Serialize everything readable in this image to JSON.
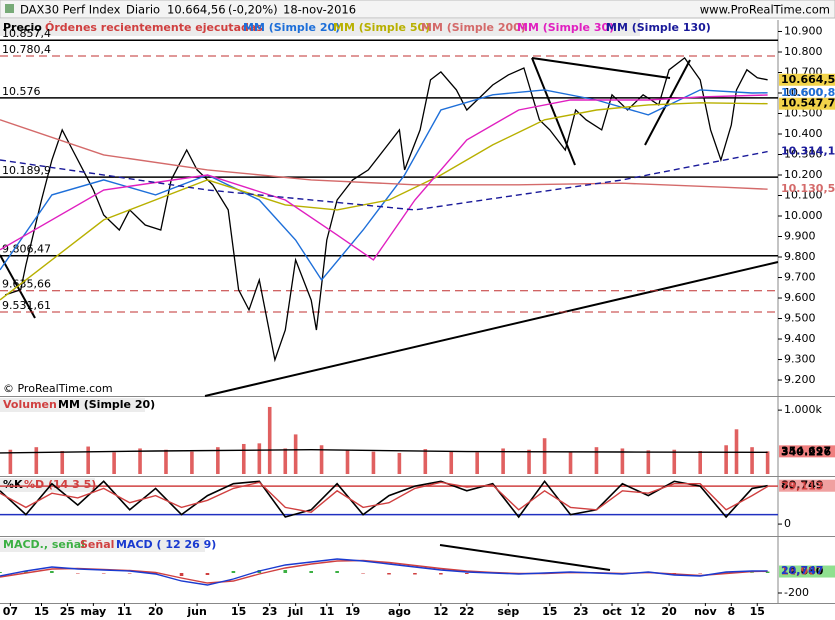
{
  "chart_data": [
    {
      "type": "line",
      "title": "DAX30 Perf Index",
      "period": "Diario",
      "change": "(-0,20%)",
      "date": "18-nov-2016",
      "site": "www.ProRealTime.com",
      "legend_note": "Órdenes recientemente ejecutadas",
      "panel_label": "Precio",
      "copyright": "© ProRealTime.com",
      "color": "#000000",
      "badge": "#f2d34a",
      "last": {
        "value": 10664.56,
        "label": "10.664,56"
      },
      "x": [
        1,
        4,
        5,
        8,
        10,
        12,
        14,
        16,
        18,
        20,
        23,
        25,
        28,
        31,
        33,
        36,
        38,
        41,
        44,
        46,
        48,
        50,
        53,
        55,
        57,
        60,
        61,
        63,
        65,
        68,
        71,
        74,
        77,
        78,
        81,
        83,
        85,
        88,
        90,
        92,
        95,
        98,
        101,
        104,
        106,
        109,
        111,
        113,
        116,
        118,
        121,
        124,
        127,
        129,
        132,
        135,
        137,
        139,
        141,
        142,
        144,
        146,
        148
      ],
      "values": [
        9615,
        9640,
        9761,
        10078,
        10273,
        10420,
        10322,
        10225,
        10127,
        10005,
        9932,
        10030,
        9956,
        9932,
        10176,
        10322,
        10225,
        10152,
        10030,
        9640,
        9542,
        9688,
        9298,
        9444,
        9786,
        9590,
        9444,
        9883,
        10078,
        10176,
        10225,
        10322,
        10420,
        10225,
        10420,
        10664,
        10703,
        10615,
        10517,
        10566,
        10639,
        10688,
        10722,
        10469,
        10420,
        10322,
        10517,
        10469,
        10420,
        10591,
        10517,
        10591,
        10542,
        10713,
        10771,
        10664,
        10420,
        10273,
        10444,
        10615,
        10713,
        10674,
        10664.56
      ],
      "xlim": [
        0,
        150
      ],
      "xticks": [
        {
          "value": 2,
          "label": "07"
        },
        {
          "value": 8,
          "label": "15"
        },
        {
          "value": 13,
          "label": "25"
        },
        {
          "value": 18,
          "label": "may"
        },
        {
          "value": 24,
          "label": "11"
        },
        {
          "value": 30,
          "label": "20"
        },
        {
          "value": 38,
          "label": "jun"
        },
        {
          "value": 46,
          "label": "15"
        },
        {
          "value": 52,
          "label": "23"
        },
        {
          "value": 57,
          "label": "jul"
        },
        {
          "value": 63,
          "label": "11"
        },
        {
          "value": 68,
          "label": "19"
        },
        {
          "value": 77,
          "label": "ago"
        },
        {
          "value": 85,
          "label": "12"
        },
        {
          "value": 90,
          "label": "22"
        },
        {
          "value": 98,
          "label": "sep"
        },
        {
          "value": 106,
          "label": "15"
        },
        {
          "value": 112,
          "label": "23"
        },
        {
          "value": 118,
          "label": "oct"
        },
        {
          "value": 123,
          "label": "12"
        },
        {
          "value": 129,
          "label": "20"
        },
        {
          "value": 136,
          "label": "nov"
        },
        {
          "value": 141,
          "label": "8"
        },
        {
          "value": 146,
          "label": "15"
        }
      ],
      "ylim": [
        9127,
        10956
      ],
      "yticks": [
        {
          "value": 9200,
          "label": "9.200"
        },
        {
          "value": 9300,
          "label": "9.300"
        },
        {
          "value": 9400,
          "label": "9.400"
        },
        {
          "value": 9500,
          "label": "9.500"
        },
        {
          "value": 9600,
          "label": "9.600"
        },
        {
          "value": 9700,
          "label": "9.700"
        },
        {
          "value": 9800,
          "label": "9.800"
        },
        {
          "value": 9900,
          "label": "9.900"
        },
        {
          "value": 10000,
          "label": "10.000"
        },
        {
          "value": 10100,
          "label": "10.100"
        },
        {
          "value": 10200,
          "label": "10.200"
        },
        {
          "value": 10300,
          "label": "10.300"
        },
        {
          "value": 10400,
          "label": "10.400"
        },
        {
          "value": 10500,
          "label": "10.500"
        },
        {
          "value": 10600,
          "label": "10.600"
        },
        {
          "value": 10700,
          "label": "10.700"
        },
        {
          "value": 10800,
          "label": "10.800"
        },
        {
          "value": 10900,
          "label": "10.900"
        }
      ],
      "levels": [
        {
          "value": 10857.4,
          "label": "10.857,4",
          "color": "#000000",
          "dashed": false
        },
        {
          "value": 10780.4,
          "label": "10.780,4",
          "color": "#c03030",
          "dashed": true
        },
        {
          "value": 10576,
          "label": "10.576",
          "color": "#000000",
          "dashed": false
        },
        {
          "value": 10189.9,
          "label": "10.189,9",
          "color": "#000000",
          "dashed": false
        },
        {
          "value": 9806.47,
          "label": "9.806,47",
          "color": "#000000",
          "dashed": false
        },
        {
          "value": 9635.66,
          "label": "9.635,66",
          "color": "#c03030",
          "dashed": true
        },
        {
          "value": 9531.61,
          "label": "9.531,61",
          "color": "#c03030",
          "dashed": true
        }
      ],
      "series": [
        {
          "name": "MM (Simple 20)",
          "color": "#1e6fd9",
          "dashed": false,
          "x": [
            0,
            10,
            20,
            30,
            40,
            50,
            57,
            62,
            70,
            78,
            85,
            95,
            105,
            115,
            125,
            135,
            145,
            148
          ],
          "values": [
            9737,
            10103,
            10176,
            10103,
            10200,
            10078,
            9883,
            9688,
            9932,
            10200,
            10517,
            10591,
            10615,
            10566,
            10493,
            10615,
            10600,
            10600.89
          ],
          "last": {
            "value": 10600.89,
            "label": "10.600,89"
          }
        },
        {
          "name": "MM (Simple 50)",
          "color": "#b8b000",
          "dashed": false,
          "badge": "#f2d34a",
          "x": [
            0,
            20,
            40,
            55,
            65,
            75,
            85,
            95,
            105,
            115,
            125,
            135,
            148
          ],
          "values": [
            9591,
            9981,
            10176,
            10054,
            10030,
            10078,
            10200,
            10347,
            10469,
            10517,
            10542,
            10552,
            10547.7
          ],
          "last": {
            "value": 10547.7,
            "label": "10.547,70"
          }
        },
        {
          "name": "MM (Simple 200)",
          "color": "#d46a6a",
          "dashed": false,
          "x": [
            0,
            20,
            40,
            60,
            80,
            100,
            120,
            140,
            148
          ],
          "values": [
            10469,
            10298,
            10225,
            10176,
            10152,
            10152,
            10160,
            10140,
            10130.56
          ],
          "last": {
            "value": 10130.56,
            "label": "10.130,56"
          }
        },
        {
          "name": "MM (Simple 30)",
          "color": "#e020c0",
          "dashed": false,
          "x": [
            0,
            20,
            40,
            55,
            65,
            72,
            80,
            90,
            100,
            110,
            125,
            135,
            148
          ],
          "values": [
            9835,
            10127,
            10200,
            10078,
            9908,
            9786,
            10078,
            10371,
            10517,
            10566,
            10566,
            10581,
            10590
          ]
        },
        {
          "name": "MM (Simple 130)",
          "color": "#1a1a9a",
          "dashed": true,
          "x": [
            0,
            40,
            80,
            120,
            148
          ],
          "values": [
            10273,
            10127,
            10030,
            10176,
            10314.11
          ],
          "last": {
            "value": 10314.11,
            "label": "10.314,11"
          }
        }
      ]
    },
    {
      "type": "bar",
      "panel_label": "Volumen",
      "color": "#e06060",
      "badge": "#f08080",
      "x": [
        2,
        7,
        12,
        17,
        22,
        27,
        32,
        37,
        42,
        47,
        50,
        52,
        55,
        57,
        62,
        67,
        72,
        77,
        82,
        87,
        92,
        97,
        102,
        105,
        110,
        115,
        120,
        125,
        130,
        135,
        140,
        142,
        145,
        148
      ],
      "values": [
        380000,
        420000,
        360000,
        430000,
        340000,
        400000,
        380000,
        350000,
        420000,
        470000,
        480000,
        1050000,
        400000,
        620000,
        450000,
        380000,
        350000,
        330000,
        390000,
        360000,
        340000,
        400000,
        380000,
        560000,
        350000,
        420000,
        400000,
        370000,
        380000,
        360000,
        450000,
        700000,
        420000,
        354697
      ],
      "last": {
        "value": 354697,
        "label": "354.697"
      },
      "xlim": [
        0,
        150
      ],
      "ylim": [
        0,
        1190000
      ],
      "yticks": [
        {
          "value": 1000000,
          "label": "1.000k"
        }
      ],
      "series": [
        {
          "name": "MM (Simple 20)",
          "color": "#000000",
          "dashed": false,
          "x": [
            0,
            30,
            60,
            90,
            120,
            148
          ],
          "values": [
            330000,
            360000,
            380000,
            350000,
            345000,
            340226
          ],
          "last": {
            "value": 340226,
            "label": "340.226"
          }
        }
      ]
    },
    {
      "type": "line",
      "xlim": [
        0,
        150
      ],
      "ylim": [
        -23,
        97
      ],
      "yticks": [
        0
      ],
      "levels": [
        {
          "value": 80,
          "color": "#d04040",
          "dashed": false
        },
        {
          "value": 20,
          "color": "#2030c0",
          "dashed": false
        }
      ],
      "series": [
        {
          "name": "%K",
          "color": "#000000",
          "dashed": false,
          "badge": "#f0a0a0",
          "x": [
            0,
            5,
            10,
            15,
            20,
            25,
            30,
            35,
            40,
            45,
            50,
            55,
            60,
            65,
            70,
            75,
            80,
            85,
            90,
            95,
            100,
            105,
            110,
            115,
            120,
            125,
            130,
            135,
            140,
            145,
            148
          ],
          "values": [
            70,
            20,
            85,
            40,
            90,
            30,
            75,
            20,
            60,
            85,
            90,
            15,
            30,
            85,
            20,
            60,
            80,
            90,
            70,
            85,
            15,
            90,
            20,
            30,
            85,
            60,
            90,
            80,
            15,
            75,
            80.749
          ],
          "last": {
            "value": 80.749,
            "label": "80,749"
          }
        },
        {
          "name": "%D (14 3 5)",
          "color": "#d04040",
          "dashed": false,
          "x": [
            0,
            5,
            10,
            15,
            20,
            25,
            30,
            35,
            40,
            45,
            50,
            55,
            60,
            65,
            70,
            75,
            80,
            85,
            90,
            95,
            100,
            105,
            110,
            115,
            120,
            125,
            130,
            135,
            140,
            145,
            148
          ],
          "values": [
            65,
            35,
            65,
            55,
            75,
            45,
            60,
            35,
            50,
            75,
            88,
            35,
            25,
            70,
            35,
            45,
            75,
            88,
            78,
            82,
            30,
            70,
            35,
            30,
            70,
            65,
            85,
            85,
            30,
            60,
            79.113
          ],
          "last": {
            "value": 79.113,
            "label": "79,113"
          }
        }
      ]
    },
    {
      "type": "line",
      "xlim": [
        0,
        150
      ],
      "ylim": [
        -300,
        350
      ],
      "yticks": [
        {
          "value": -200,
          "label": "-200"
        }
      ],
      "series": [
        {
          "name": "MACD., señal",
          "kind": "histogram",
          "color": "#3cb043",
          "negative_color": "#d04040",
          "badge": "#8fe08f",
          "x": [
            0,
            5,
            10,
            15,
            20,
            25,
            30,
            35,
            40,
            45,
            50,
            55,
            60,
            65,
            70,
            75,
            80,
            85,
            90,
            95,
            100,
            105,
            110,
            115,
            120,
            125,
            130,
            135,
            140,
            145,
            148
          ],
          "values": [
            10,
            20,
            20,
            -5,
            -5,
            -5,
            -15,
            -30,
            -20,
            20,
            30,
            30,
            20,
            20,
            -5,
            -15,
            -15,
            -15,
            -10,
            -5,
            -5,
            5,
            5,
            -3,
            -5,
            5,
            -10,
            -5,
            15,
            5,
            14.68
          ],
          "last": {
            "value": 14.68,
            "label": "14,680"
          }
        },
        {
          "name": "Señal",
          "kind": "line",
          "color": "#d04040",
          "dashed": false,
          "x": [
            0,
            5,
            10,
            15,
            20,
            25,
            30,
            35,
            40,
            45,
            50,
            55,
            60,
            65,
            70,
            75,
            80,
            85,
            90,
            95,
            100,
            105,
            110,
            115,
            120,
            125,
            130,
            135,
            140,
            145,
            148
          ],
          "values": [
            -40,
            0,
            40,
            45,
            35,
            25,
            5,
            -50,
            -100,
            -80,
            -10,
            50,
            90,
            120,
            125,
            105,
            75,
            45,
            20,
            5,
            -5,
            -5,
            5,
            3,
            -5,
            5,
            -10,
            -25,
            -5,
            15,
            16.907
          ],
          "last": {
            "value": 16.907,
            "label": "16,907"
          }
        },
        {
          "name": "MACD ( 12 26 9)",
          "kind": "line",
          "color": "#1a3ad0",
          "dashed": false,
          "x": [
            0,
            5,
            10,
            15,
            20,
            25,
            30,
            35,
            40,
            45,
            50,
            55,
            60,
            65,
            70,
            75,
            80,
            85,
            90,
            95,
            100,
            105,
            110,
            115,
            120,
            125,
            130,
            135,
            140,
            145,
            148
          ],
          "values": [
            -30,
            20,
            60,
            40,
            30,
            20,
            -10,
            -80,
            -120,
            -60,
            20,
            80,
            110,
            140,
            120,
            90,
            60,
            30,
            10,
            0,
            -10,
            0,
            10,
            0,
            -10,
            10,
            -20,
            -30,
            10,
            20,
            20.747
          ],
          "last": {
            "value": 20.747,
            "label": "20,747"
          }
        }
      ]
    }
  ]
}
